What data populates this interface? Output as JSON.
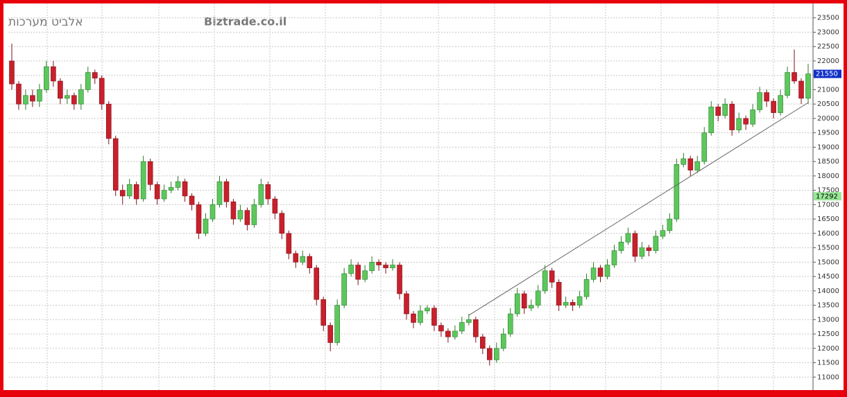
{
  "chart_data": {
    "type": "candlestick",
    "title": "אלביט מערכות",
    "subtitle": "Biztrade.co.il",
    "up_color": "#5cc85c",
    "down_color": "#c8202c",
    "ylim": [
      10500,
      24000
    ],
    "yticks": [
      11000,
      11500,
      12000,
      12500,
      13000,
      13500,
      14000,
      14500,
      15000,
      15500,
      16000,
      16500,
      17000,
      17500,
      18000,
      18500,
      19000,
      19500,
      20000,
      20500,
      21000,
      21500,
      22000,
      22500,
      23000,
      23500
    ],
    "grid": true,
    "ohlc": [
      [
        22000,
        22600,
        21000,
        21200
      ],
      [
        21200,
        21300,
        20300,
        20500
      ],
      [
        20500,
        21000,
        20300,
        20800
      ],
      [
        20800,
        21000,
        20400,
        20600
      ],
      [
        20600,
        21200,
        20400,
        21000
      ],
      [
        21000,
        22000,
        20900,
        21800
      ],
      [
        21800,
        22000,
        21100,
        21300
      ],
      [
        21300,
        21400,
        20500,
        20700
      ],
      [
        20700,
        21000,
        20500,
        20800
      ],
      [
        20800,
        20900,
        20300,
        20500
      ],
      [
        20500,
        21200,
        20300,
        21000
      ],
      [
        21000,
        21800,
        20900,
        21600
      ],
      [
        21600,
        21700,
        21200,
        21400
      ],
      [
        21400,
        21500,
        20300,
        20500
      ],
      [
        20500,
        20600,
        19100,
        19300
      ],
      [
        19300,
        19400,
        17300,
        17500
      ],
      [
        17500,
        17700,
        17000,
        17300
      ],
      [
        17300,
        17900,
        17200,
        17700
      ],
      [
        17700,
        17800,
        17000,
        17200
      ],
      [
        17200,
        18700,
        17100,
        18500
      ],
      [
        18500,
        18600,
        17500,
        17700
      ],
      [
        17700,
        17800,
        17000,
        17200
      ],
      [
        17200,
        17700,
        17100,
        17500
      ],
      [
        17500,
        17800,
        17400,
        17600
      ],
      [
        17600,
        18000,
        17500,
        17800
      ],
      [
        17800,
        17900,
        17100,
        17300
      ],
      [
        17300,
        17400,
        16800,
        17000
      ],
      [
        17000,
        17100,
        15800,
        16000
      ],
      [
        16000,
        16700,
        15900,
        16500
      ],
      [
        16500,
        17200,
        16400,
        17000
      ],
      [
        17000,
        18000,
        16900,
        17800
      ],
      [
        17800,
        17900,
        16900,
        17100
      ],
      [
        17100,
        17200,
        16300,
        16500
      ],
      [
        16500,
        17000,
        16400,
        16800
      ],
      [
        16800,
        16900,
        16100,
        16300
      ],
      [
        16300,
        17200,
        16200,
        17000
      ],
      [
        17000,
        17900,
        16900,
        17700
      ],
      [
        17700,
        17800,
        17000,
        17200
      ],
      [
        17200,
        17300,
        16500,
        16700
      ],
      [
        16700,
        16800,
        15800,
        16000
      ],
      [
        16000,
        16100,
        15100,
        15300
      ],
      [
        15300,
        15400,
        14800,
        15000
      ],
      [
        15000,
        15400,
        14900,
        15200
      ],
      [
        15200,
        15300,
        14600,
        14800
      ],
      [
        14800,
        14900,
        13500,
        13700
      ],
      [
        13700,
        13800,
        12600,
        12800
      ],
      [
        12800,
        12900,
        11900,
        12200
      ],
      [
        12200,
        13700,
        12100,
        13500
      ],
      [
        13500,
        14800,
        13400,
        14600
      ],
      [
        14600,
        15100,
        14500,
        14900
      ],
      [
        14900,
        15000,
        14200,
        14400
      ],
      [
        14400,
        14900,
        14300,
        14700
      ],
      [
        14700,
        15200,
        14600,
        15000
      ],
      [
        15000,
        15100,
        14700,
        14900
      ],
      [
        14900,
        15000,
        14600,
        14800
      ],
      [
        14800,
        15100,
        14700,
        14900
      ],
      [
        14900,
        15000,
        13700,
        13900
      ],
      [
        13900,
        14000,
        13000,
        13200
      ],
      [
        13200,
        13300,
        12700,
        12900
      ],
      [
        12900,
        13500,
        12800,
        13300
      ],
      [
        13300,
        13500,
        13200,
        13400
      ],
      [
        13400,
        13500,
        12600,
        12800
      ],
      [
        12800,
        12900,
        12400,
        12600
      ],
      [
        12600,
        12700,
        12200,
        12400
      ],
      [
        12400,
        12800,
        12300,
        12600
      ],
      [
        12600,
        13100,
        12500,
        12900
      ],
      [
        12900,
        13200,
        12800,
        13000
      ],
      [
        13000,
        13100,
        12200,
        12400
      ],
      [
        12400,
        12500,
        11800,
        12000
      ],
      [
        12000,
        12100,
        11400,
        11600
      ],
      [
        11600,
        12200,
        11500,
        12000
      ],
      [
        12000,
        12700,
        11900,
        12500
      ],
      [
        12500,
        13400,
        12400,
        13200
      ],
      [
        13200,
        14100,
        13100,
        13900
      ],
      [
        13900,
        14000,
        13200,
        13400
      ],
      [
        13400,
        13700,
        13300,
        13500
      ],
      [
        13500,
        14200,
        13400,
        14000
      ],
      [
        14000,
        14900,
        13900,
        14700
      ],
      [
        14700,
        14800,
        14100,
        14300
      ],
      [
        14300,
        14400,
        13300,
        13500
      ],
      [
        13500,
        13800,
        13400,
        13600
      ],
      [
        13600,
        13700,
        13300,
        13500
      ],
      [
        13500,
        14000,
        13400,
        13800
      ],
      [
        13800,
        14600,
        13700,
        14400
      ],
      [
        14400,
        15000,
        14300,
        14800
      ],
      [
        14800,
        14900,
        14300,
        14500
      ],
      [
        14500,
        15100,
        14400,
        14900
      ],
      [
        14900,
        15600,
        14800,
        15400
      ],
      [
        15400,
        15900,
        15300,
        15700
      ],
      [
        15700,
        16200,
        15600,
        16000
      ],
      [
        16000,
        16100,
        15000,
        15200
      ],
      [
        15200,
        15700,
        15100,
        15500
      ],
      [
        15500,
        15600,
        15200,
        15400
      ],
      [
        15400,
        16100,
        15300,
        15900
      ],
      [
        15900,
        16300,
        15800,
        16100
      ],
      [
        16100,
        16700,
        16000,
        16500
      ],
      [
        16500,
        18600,
        16400,
        18400
      ],
      [
        18400,
        18800,
        18300,
        18600
      ],
      [
        18600,
        18700,
        18000,
        18200
      ],
      [
        18200,
        18700,
        18100,
        18500
      ],
      [
        18500,
        19700,
        18400,
        19500
      ],
      [
        19500,
        20600,
        19400,
        20400
      ],
      [
        20400,
        20500,
        19900,
        20100
      ],
      [
        20100,
        20700,
        20000,
        20500
      ],
      [
        20500,
        20600,
        19400,
        19600
      ],
      [
        19600,
        20200,
        19500,
        20000
      ],
      [
        20000,
        20100,
        19600,
        19800
      ],
      [
        19800,
        20500,
        19700,
        20300
      ],
      [
        20300,
        21100,
        20200,
        20900
      ],
      [
        20900,
        21000,
        20400,
        20600
      ],
      [
        20600,
        20700,
        20000,
        20200
      ],
      [
        20200,
        21000,
        20100,
        20800
      ],
      [
        20800,
        21800,
        20700,
        21600
      ],
      [
        21600,
        22400,
        21200,
        21300
      ],
      [
        21300,
        21400,
        20500,
        20700
      ],
      [
        20700,
        21900,
        20500,
        21550
      ]
    ],
    "trendline": {
      "from": [
        66,
        13150
      ],
      "to": [
        115,
        20550
      ],
      "color": "#666666"
    },
    "price_labels": [
      {
        "value": 21550,
        "color": "#1030c8",
        "text_color": "#ffffff"
      },
      {
        "value": 17292,
        "color": "#98e898",
        "text_color": "#000000"
      }
    ]
  }
}
